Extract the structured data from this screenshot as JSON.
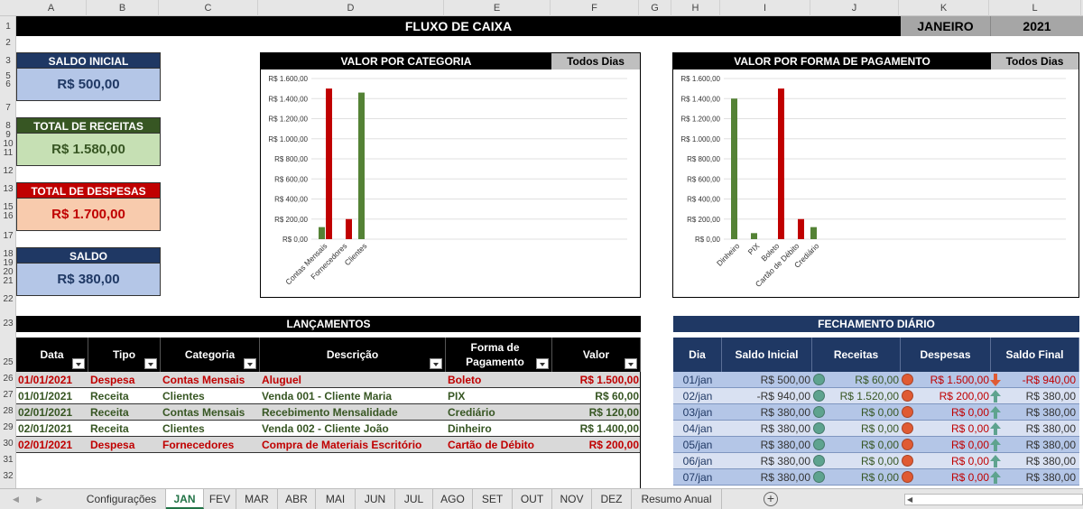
{
  "columns": [
    "A",
    "B",
    "C",
    "D",
    "E",
    "F",
    "G",
    "H",
    "I",
    "J",
    "K",
    "L"
  ],
  "rows": [
    "1",
    "2",
    "3",
    "5",
    "6",
    "7",
    "8",
    "9",
    "10",
    "11",
    "12",
    "13",
    "15",
    "16",
    "17",
    "18",
    "19",
    "20",
    "21",
    "22",
    "23",
    "25",
    "26",
    "27",
    "28",
    "29",
    "30",
    "31",
    "32"
  ],
  "title": "FLUXO DE CAIXA",
  "month": "JANEIRO",
  "year": "2021",
  "cards": {
    "saldo_inicial": {
      "label": "SALDO INICIAL",
      "value": "R$ 500,00"
    },
    "total_receitas": {
      "label": "TOTAL DE RECEITAS",
      "value": "R$ 1.580,00"
    },
    "total_despesas": {
      "label": "TOTAL DE DESPESAS",
      "value": "R$ 1.700,00"
    },
    "saldo": {
      "label": "SALDO",
      "value": "R$ 380,00"
    }
  },
  "colors": {
    "receita": "#548235",
    "despesa": "#c00000",
    "navy": "#1f3864",
    "green_dot": "#5ea38f",
    "red_dot": "#e05a33"
  },
  "chart_data": [
    {
      "type": "bar",
      "title": "VALOR POR CATEGORIA",
      "filter": "Todos Dias",
      "categories": [
        "Contas Mensais",
        "Fornecedores",
        "Clientes"
      ],
      "series": [
        {
          "values": [
            120,
            0,
            1460
          ],
          "color": "#548235"
        },
        {
          "values": [
            1500,
            200,
            0
          ],
          "color": "#c00000"
        }
      ],
      "ytick_labels": [
        "R$ 0,00",
        "R$ 200,00",
        "R$ 400,00",
        "R$ 600,00",
        "R$ 800,00",
        "R$ 1.000,00",
        "R$ 1.200,00",
        "R$ 1.400,00",
        "R$ 1.600,00"
      ],
      "ylim": [
        0,
        1600
      ],
      "grid": true
    },
    {
      "type": "bar",
      "title": "VALOR POR FORMA DE PAGAMENTO",
      "filter": "Todos Dias",
      "categories": [
        "Dinheiro",
        "PIX",
        "Boleto",
        "Cartão de Débito",
        "Crediário"
      ],
      "series": [
        {
          "values": [
            1400,
            60,
            0,
            0,
            120
          ],
          "color": "#548235"
        },
        {
          "values": [
            0,
            0,
            1500,
            200,
            0
          ],
          "color": "#c00000"
        }
      ],
      "ytick_labels": [
        "R$ 0,00",
        "R$ 200,00",
        "R$ 400,00",
        "R$ 600,00",
        "R$ 800,00",
        "R$ 1.000,00",
        "R$ 1.200,00",
        "R$ 1.400,00",
        "R$ 1.600,00"
      ],
      "ylim": [
        0,
        1600
      ],
      "grid": true
    }
  ],
  "lancamentos": {
    "title": "LANÇAMENTOS",
    "headers": [
      "Data",
      "Tipo",
      "Categoria",
      "Descrição",
      "Forma de Pagamento",
      "Valor"
    ],
    "rows": [
      {
        "data": "01/01/2021",
        "tipo": "Despesa",
        "categoria": "Contas Mensais",
        "descricao": "Aluguel",
        "forma": "Boleto",
        "valor": "R$ 1.500,00"
      },
      {
        "data": "01/01/2021",
        "tipo": "Receita",
        "categoria": "Clientes",
        "descricao": "Venda 001 - Cliente Maria",
        "forma": "PIX",
        "valor": "R$ 60,00"
      },
      {
        "data": "02/01/2021",
        "tipo": "Receita",
        "categoria": "Contas Mensais",
        "descricao": "Recebimento Mensalidade",
        "forma": "Crediário",
        "valor": "R$ 120,00"
      },
      {
        "data": "02/01/2021",
        "tipo": "Receita",
        "categoria": "Clientes",
        "descricao": "Venda 002 - Cliente João",
        "forma": "Dinheiro",
        "valor": "R$ 1.400,00"
      },
      {
        "data": "02/01/2021",
        "tipo": "Despesa",
        "categoria": "Fornecedores",
        "descricao": "Compra de Materiais Escritório",
        "forma": "Cartão de Débito",
        "valor": "R$ 200,00"
      }
    ]
  },
  "fechamento": {
    "title": "FECHAMENTO DIÁRIO",
    "headers": [
      "Dia",
      "Saldo Inicial",
      "Receitas",
      "Despesas",
      "Saldo Final"
    ],
    "rows": [
      {
        "dia": "01/jan",
        "inicial": "R$ 500,00",
        "receitas": "R$ 60,00",
        "despesas": "R$ 1.500,00",
        "final": "-R$ 940,00",
        "trend": "down"
      },
      {
        "dia": "02/jan",
        "inicial": "-R$ 940,00",
        "receitas": "R$ 1.520,00",
        "despesas": "R$ 200,00",
        "final": "R$ 380,00",
        "trend": "up"
      },
      {
        "dia": "03/jan",
        "inicial": "R$ 380,00",
        "receitas": "R$ 0,00",
        "despesas": "R$ 0,00",
        "final": "R$ 380,00",
        "trend": "up"
      },
      {
        "dia": "04/jan",
        "inicial": "R$ 380,00",
        "receitas": "R$ 0,00",
        "despesas": "R$ 0,00",
        "final": "R$ 380,00",
        "trend": "up"
      },
      {
        "dia": "05/jan",
        "inicial": "R$ 380,00",
        "receitas": "R$ 0,00",
        "despesas": "R$ 0,00",
        "final": "R$ 380,00",
        "trend": "up"
      },
      {
        "dia": "06/jan",
        "inicial": "R$ 380,00",
        "receitas": "R$ 0,00",
        "despesas": "R$ 0,00",
        "final": "R$ 380,00",
        "trend": "up"
      },
      {
        "dia": "07/jan",
        "inicial": "R$ 380,00",
        "receitas": "R$ 0,00",
        "despesas": "R$ 0,00",
        "final": "R$ 380,00",
        "trend": "up"
      }
    ]
  },
  "tabs": [
    "Configurações",
    "JAN",
    "FEV",
    "MAR",
    "ABR",
    "MAI",
    "JUN",
    "JUL",
    "AGO",
    "SET",
    "OUT",
    "NOV",
    "DEZ",
    "Resumo Anual"
  ],
  "active_tab": "JAN"
}
